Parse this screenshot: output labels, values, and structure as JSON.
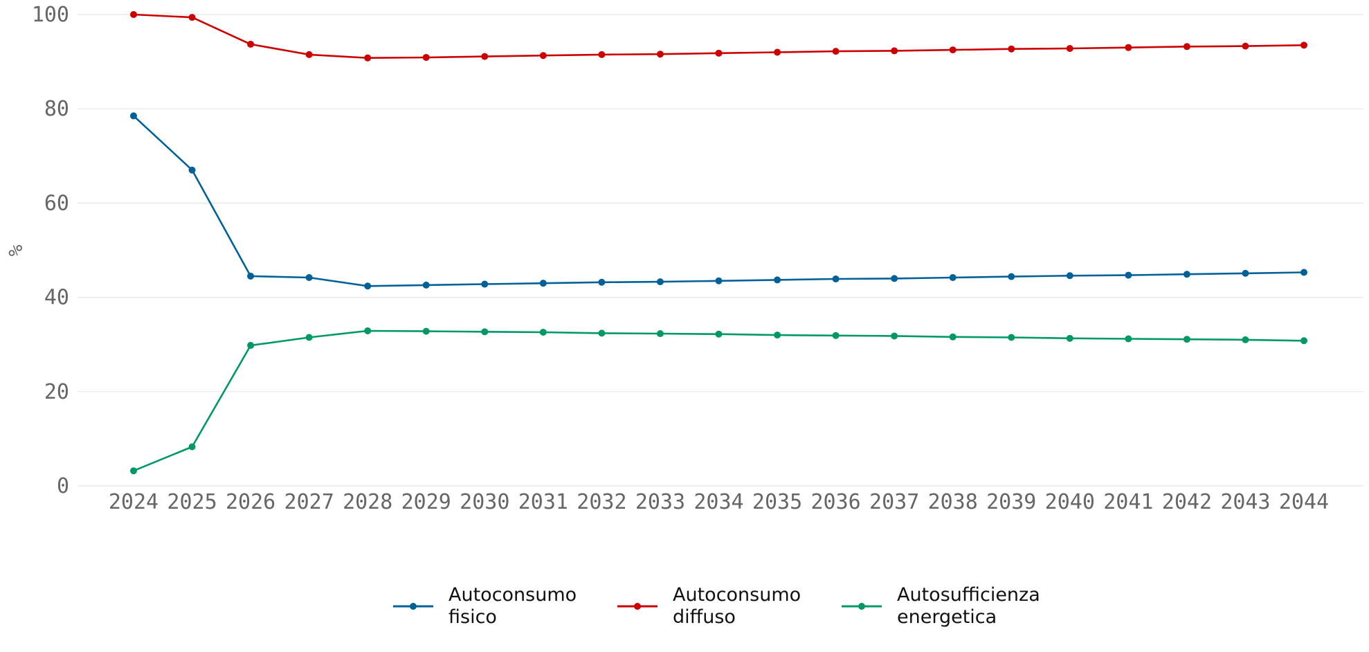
{
  "chart_data": {
    "type": "line",
    "title": "",
    "xlabel": "",
    "ylabel": "%",
    "ylim": [
      0,
      100
    ],
    "yticks": [
      0,
      20,
      40,
      60,
      80,
      100
    ],
    "grid": true,
    "legend_position": "bottom-center",
    "x": [
      "2024",
      "2025",
      "2026",
      "2027",
      "2028",
      "2029",
      "2030",
      "2031",
      "2032",
      "2033",
      "2034",
      "2035",
      "2036",
      "2037",
      "2038",
      "2039",
      "2040",
      "2041",
      "2042",
      "2043",
      "2044"
    ],
    "series": [
      {
        "name": "Autoconsumo fisico",
        "legend_lines": [
          "Autoconsumo",
          "fisico"
        ],
        "color": "#006199",
        "values": [
          78.5,
          67.0,
          44.5,
          44.2,
          42.4,
          42.6,
          42.8,
          43.0,
          43.2,
          43.3,
          43.5,
          43.7,
          43.9,
          44.0,
          44.2,
          44.4,
          44.6,
          44.7,
          44.9,
          45.1,
          45.3
        ]
      },
      {
        "name": "Autoconsumo diffuso",
        "legend_lines": [
          "Autoconsumo",
          "diffuso"
        ],
        "color": "#cc0000",
        "values": [
          100.0,
          99.4,
          93.7,
          91.5,
          90.8,
          90.9,
          91.1,
          91.3,
          91.5,
          91.6,
          91.8,
          92.0,
          92.2,
          92.3,
          92.5,
          92.7,
          92.8,
          93.0,
          93.2,
          93.3,
          93.5
        ]
      },
      {
        "name": "Autosufficienza energetica",
        "legend_lines": [
          "Autosufficienza",
          "energetica"
        ],
        "color": "#009966",
        "values": [
          3.2,
          8.3,
          29.8,
          31.5,
          32.9,
          32.8,
          32.7,
          32.6,
          32.4,
          32.3,
          32.2,
          32.0,
          31.9,
          31.8,
          31.6,
          31.5,
          31.3,
          31.2,
          31.1,
          31.0,
          30.8
        ]
      }
    ]
  }
}
